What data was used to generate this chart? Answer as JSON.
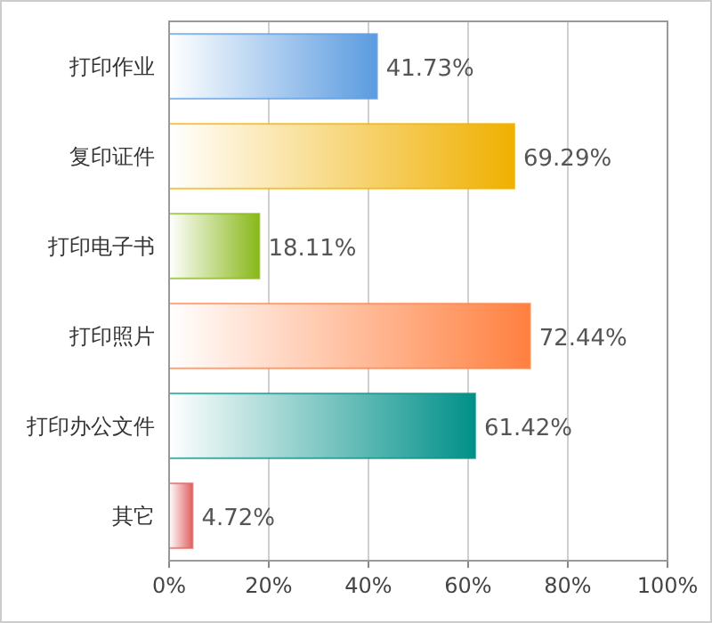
{
  "chart_data": {
    "type": "bar",
    "orientation": "horizontal",
    "categories": [
      "打印作业",
      "复印证件",
      "打印电子书",
      "打印照片",
      "打印办公文件",
      "其它"
    ],
    "values": [
      41.73,
      69.29,
      18.11,
      72.44,
      61.42,
      4.72
    ],
    "colors": [
      "#5a9be0",
      "#f0b000",
      "#88b818",
      "#ff8040",
      "#009088",
      "#e06060"
    ],
    "value_labels": [
      "41.73%",
      "69.29%",
      "18.11%",
      "72.44%",
      "61.42%",
      "4.72%"
    ],
    "xlim": [
      0,
      100
    ],
    "xticks": [
      {
        "value": 0,
        "label": "0%"
      },
      {
        "value": 20,
        "label": "20%"
      },
      {
        "value": 40,
        "label": "40%"
      },
      {
        "value": 60,
        "label": "60%"
      },
      {
        "value": 80,
        "label": "80%"
      },
      {
        "value": 100,
        "label": "100%"
      }
    ],
    "grid": "x"
  }
}
